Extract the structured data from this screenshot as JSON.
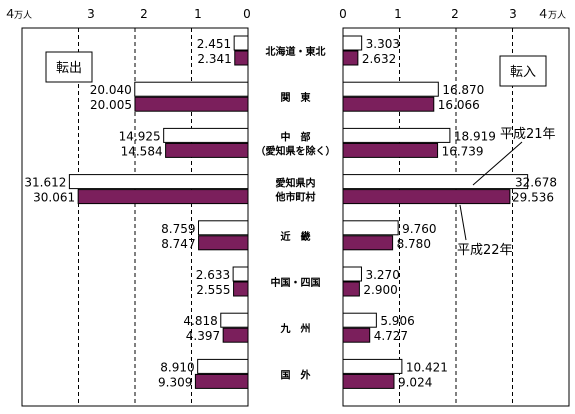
{
  "chart_data": {
    "type": "bar",
    "orientation": "horizontal",
    "layout": "back-to-back",
    "panels": {
      "left": {
        "label": "転出"
      },
      "right": {
        "label": "転入"
      }
    },
    "unit": "万人",
    "xlim": [
      0,
      4
    ],
    "ticks": [
      {
        "value": 4,
        "label": "４"
      },
      {
        "value": 3,
        "label": "3"
      },
      {
        "value": 2,
        "label": "2"
      },
      {
        "value": 1,
        "label": "1"
      },
      {
        "value": 0,
        "label": "0"
      }
    ],
    "right_ticks": [
      {
        "value": 0,
        "label": "0"
      },
      {
        "value": 1,
        "label": "1"
      },
      {
        "value": 2,
        "label": "2"
      },
      {
        "value": 3,
        "label": "3"
      },
      {
        "value": 4,
        "label": "４"
      }
    ],
    "grid": true,
    "categories": [
      {
        "lines": [
          "北海道・東北"
        ]
      },
      {
        "lines": [
          "関　東"
        ]
      },
      {
        "lines": [
          "中　部",
          "（愛知県を除く）"
        ]
      },
      {
        "lines": [
          "愛知県内",
          "他市町村"
        ]
      },
      {
        "lines": [
          "近　畿"
        ]
      },
      {
        "lines": [
          "中国・四国"
        ]
      },
      {
        "lines": [
          "九　州"
        ]
      },
      {
        "lines": [
          "国　外"
        ]
      }
    ],
    "series": [
      {
        "name": "平成21年",
        "color": "#ffffff",
        "left_values": [
          2.451,
          20.04,
          14.925,
          31.612,
          8.759,
          2.633,
          4.818,
          8.91
        ],
        "left_labels": [
          "2.451",
          "20.040",
          "14.925",
          "31.612",
          "8.759",
          "2.633",
          "4.818",
          "8.910"
        ],
        "right_values": [
          3.303,
          16.87,
          18.919,
          32.678,
          9.76,
          3.27,
          5.906,
          10.421
        ],
        "right_labels": [
          "3.303",
          "16.870",
          "18.919",
          "32.678",
          "9.760",
          "3.270",
          "5.906",
          "10.421"
        ]
      },
      {
        "name": "平成22年",
        "color": "#7b1f5c",
        "left_values": [
          2.341,
          20.005,
          14.584,
          30.061,
          8.747,
          2.555,
          4.397,
          9.309
        ],
        "left_labels": [
          "2.341",
          "20.005",
          "14.584",
          "30.061",
          "8.747",
          "2.555",
          "4.397",
          "9.309"
        ],
        "right_values": [
          2.632,
          16.066,
          16.739,
          29.536,
          8.78,
          2.9,
          4.727,
          9.024
        ],
        "right_labels": [
          "2.632",
          "16.066",
          "16.739",
          "29.536",
          "8.780",
          "2.900",
          "4.727",
          "9.024"
        ]
      }
    ]
  }
}
